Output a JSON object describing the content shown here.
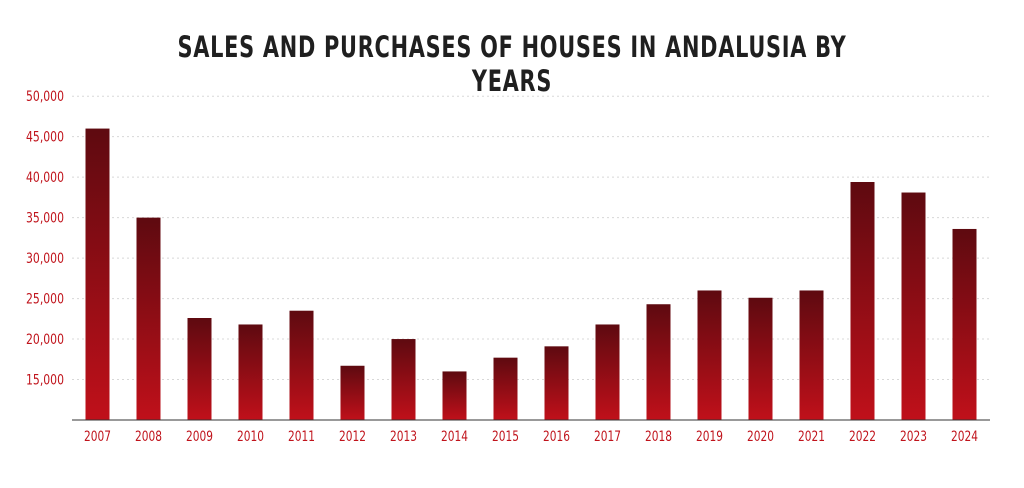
{
  "chart_data": {
    "type": "bar",
    "title": "SALES AND PURCHASES OF HOUSES IN ANDALUSIA BY YEARS",
    "categories": [
      "2007",
      "2008",
      "2009",
      "2010",
      "2011",
      "2012",
      "2013",
      "2014",
      "2015",
      "2016",
      "2017",
      "2018",
      "2019",
      "2020",
      "2021",
      "2022",
      "2023",
      "2024"
    ],
    "values": [
      46000,
      35000,
      22600,
      21800,
      23500,
      16700,
      20000,
      16000,
      17700,
      19100,
      21800,
      24300,
      26000,
      25100,
      26000,
      39400,
      38100,
      33600
    ],
    "ylim": [
      10000,
      52000
    ],
    "yticks": [
      15000,
      20000,
      25000,
      30000,
      35000,
      40000,
      45000,
      50000
    ],
    "ytick_labels": [
      "15,000",
      "20,000",
      "25,000",
      "30,000",
      "35,000",
      "40,000",
      "45,000",
      "50,000"
    ],
    "grid": true,
    "colors": {
      "bar_top": "#5e0a10",
      "bar_bottom": "#c0101a",
      "tick_text": "#c0131b",
      "grid": "#d8d8d8",
      "axis": "#333333"
    }
  }
}
